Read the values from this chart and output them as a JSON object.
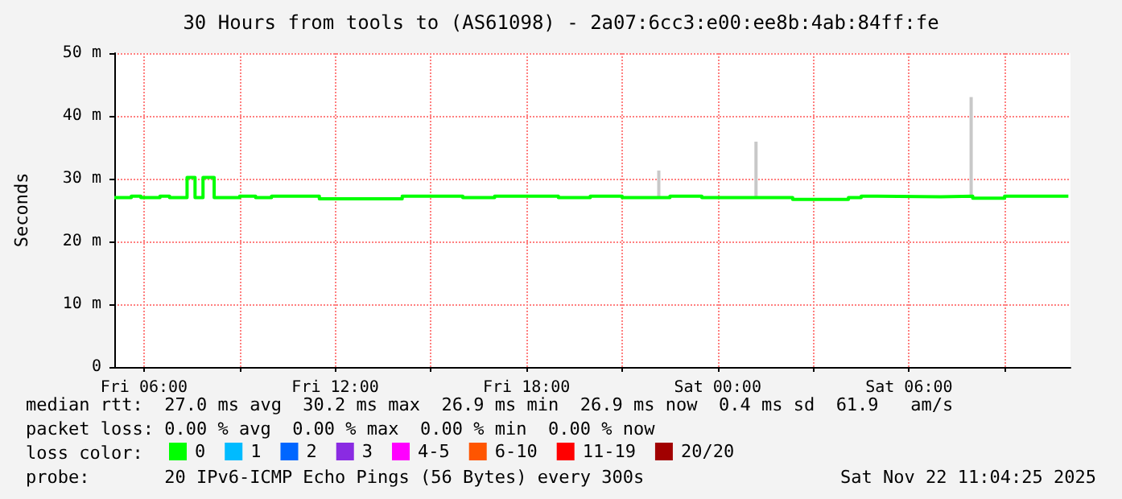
{
  "chart_data": {
    "type": "step",
    "title": "30 Hours from tools to (AS61098) - 2a07:6cc3:e00:ee8b:4ab:84ff:fe",
    "ylabel": "Seconds",
    "xlim": [
      "2025-11-21T05:04",
      "2025-11-22T11:04"
    ],
    "xticks": [
      {
        "value": "2025-11-21T06:00",
        "label": "Fri 06:00"
      },
      {
        "value": "2025-11-21T09:00",
        "label": null
      },
      {
        "value": "2025-11-21T12:00",
        "label": "Fri 12:00"
      },
      {
        "value": "2025-11-21T15:00",
        "label": null
      },
      {
        "value": "2025-11-21T18:00",
        "label": "Fri 18:00"
      },
      {
        "value": "2025-11-21T21:00",
        "label": null
      },
      {
        "value": "2025-11-22T00:00",
        "label": "Sat 00:00"
      },
      {
        "value": "2025-11-22T03:00",
        "label": null
      },
      {
        "value": "2025-11-22T06:00",
        "label": "Sat 06:00"
      },
      {
        "value": "2025-11-22T09:00",
        "label": null
      }
    ],
    "ylim": [
      0,
      50
    ],
    "yticks": [
      0,
      {
        "value": 10,
        "label": "10 m"
      },
      {
        "value": 20,
        "label": "20 m"
      },
      {
        "value": 30,
        "label": "30 m"
      },
      {
        "value": 40,
        "label": "40 m"
      },
      {
        "value": 50,
        "label": "50 m"
      }
    ],
    "grid": true,
    "legend": "bottom left",
    "legend_title": "loss color:",
    "series": [
      {
        "name": "0",
        "color": "#00ff00",
        "x": [
          "2025-11-21T05:04",
          "2025-11-21T05:36",
          "2025-11-21T05:54",
          "2025-11-21T06:30",
          "2025-11-21T06:48",
          "2025-11-21T07:21",
          "2025-11-21T07:36",
          "2025-11-21T07:51",
          "2025-11-21T08:12",
          "2025-11-21T09:00",
          "2025-11-21T09:30",
          "2025-11-21T10:00",
          "2025-11-21T11:30",
          "2025-11-21T14:06",
          "2025-11-21T16:00",
          "2025-11-21T17:00",
          "2025-11-21T19:00",
          "2025-11-21T20:00",
          "2025-11-21T21:00",
          "2025-11-21T22:30",
          "2025-11-21T23:30",
          "2025-11-22T02:21",
          "2025-11-22T04:06",
          "2025-11-22T04:30",
          "2025-11-22T05:00",
          "2025-11-22T07:00",
          "2025-11-22T08:00",
          "2025-11-22T09:00",
          "2025-11-22T11:00"
        ],
        "values": [
          27,
          27.2,
          27,
          27.2,
          27,
          30.2,
          27,
          30.2,
          27,
          27.2,
          27,
          27.2,
          26.8,
          27.2,
          27,
          27.2,
          27,
          27.2,
          27,
          27.2,
          27,
          26.7,
          27,
          27.2,
          27.1,
          27.2,
          26.9,
          27.2,
          27.2
        ]
      },
      {
        "name": "1",
        "color": "#00bbff"
      },
      {
        "name": "2",
        "color": "#0066ff"
      },
      {
        "name": "3",
        "color": "#8a2be2"
      },
      {
        "name": "4-5",
        "color": "#ff00ff"
      },
      {
        "name": "6-10",
        "color": "#ff5500"
      },
      {
        "name": "11-19",
        "color": "#ff0000"
      },
      {
        "name": "20/20",
        "color": "#a10000"
      },
      {
        "type": "bar",
        "color": "#c8c8c8",
        "x": [
          "2025-11-21T22:09",
          "2025-11-22T01:12",
          "2025-11-22T07:57"
        ],
        "base": [
          27,
          27,
          27
        ],
        "values": [
          4.3,
          8.9,
          16
        ]
      }
    ],
    "annotations": [
      "median rtt:  27.0 ms avg  30.2 ms max  26.9 ms min  26.9 ms now  0.4 ms sd  61.9   am/s",
      "packet loss: 0.00 % avg  0.00 % max  0.00 % min  0.00 % now",
      "probe:       20 IPv6-ICMP Echo Pings (56 Bytes) every 300s",
      "Sat Nov 22 11:04:25 2025"
    ]
  }
}
